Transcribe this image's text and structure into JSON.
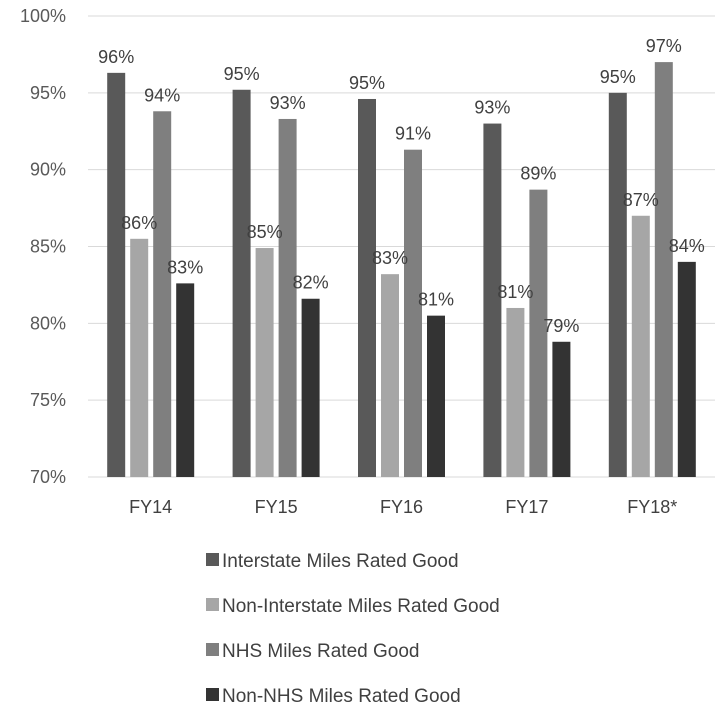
{
  "chart_data": {
    "type": "bar",
    "categories": [
      "FY14",
      "FY15",
      "FY16",
      "FY17",
      "FY18*"
    ],
    "ylim": [
      70,
      100
    ],
    "yticks": [
      "70%",
      "75%",
      "80%",
      "85%",
      "90%",
      "95%",
      "100%"
    ],
    "grid": true,
    "legend_position": "bottom",
    "series": [
      {
        "name": "Interstate Miles Rated Good",
        "color": "#595959",
        "values": [
          96.3,
          95.2,
          94.6,
          93.0,
          95.0
        ],
        "labels": [
          "96%",
          "95%",
          "95%",
          "93%",
          "95%"
        ]
      },
      {
        "name": "Non-Interstate Miles Rated Good",
        "color": "#a6a6a6",
        "values": [
          85.5,
          84.9,
          83.2,
          81.0,
          87.0
        ],
        "labels": [
          "86%",
          "85%",
          "83%",
          "81%",
          "87%"
        ]
      },
      {
        "name": "NHS Miles Rated Good",
        "color": "#7f7f7f",
        "values": [
          93.8,
          93.3,
          91.3,
          88.7,
          97.0
        ],
        "labels": [
          "94%",
          "93%",
          "91%",
          "89%",
          "97%"
        ]
      },
      {
        "name": "Non-NHS Miles Rated Good",
        "color": "#333333",
        "values": [
          82.6,
          81.6,
          80.5,
          78.8,
          84.0
        ],
        "labels": [
          "83%",
          "82%",
          "81%",
          "79%",
          "84%"
        ]
      }
    ]
  }
}
